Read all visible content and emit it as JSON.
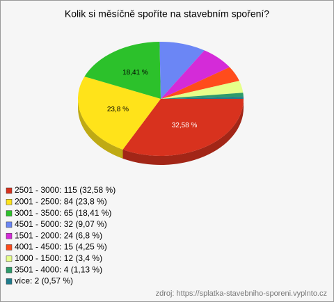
{
  "chart_data": {
    "type": "pie3d",
    "title": "Kolik si měsíčně spoříte na stavebním spoření?",
    "categories": [
      "2501 - 3000: 115 (32,58 %)",
      "2001 - 2500: 84 (23,8 %)",
      "3001 - 3500: 65 (18,41 %)",
      "4501 - 5000: 32 (9,07 %)",
      "1501 - 2000: 24 (6,8 %)",
      "4001 - 4500: 15 (4,25 %)",
      "1000 - 1500: 12 (3,4 %)",
      "3501 - 4000: 4 (1,13 %)",
      "více: 2 (0,57 %)"
    ],
    "values": [
      32.58,
      23.8,
      18.41,
      9.07,
      6.8,
      4.25,
      3.4,
      1.13,
      0.57
    ],
    "value_labels": [
      "32,58 %",
      "23,8 %",
      "18,41 %",
      null,
      null,
      null,
      null,
      null,
      null
    ],
    "colors": [
      "#d8321e",
      "#ffe31a",
      "#2cc12b",
      "#6b86f5",
      "#d42bd8",
      "#ff4c1c",
      "#e6ff8a",
      "#2e9b6b",
      "#1f7c8c"
    ],
    "source": "zdroj: https://splatka-stavebniho-sporeni.vyplnto.cz"
  }
}
